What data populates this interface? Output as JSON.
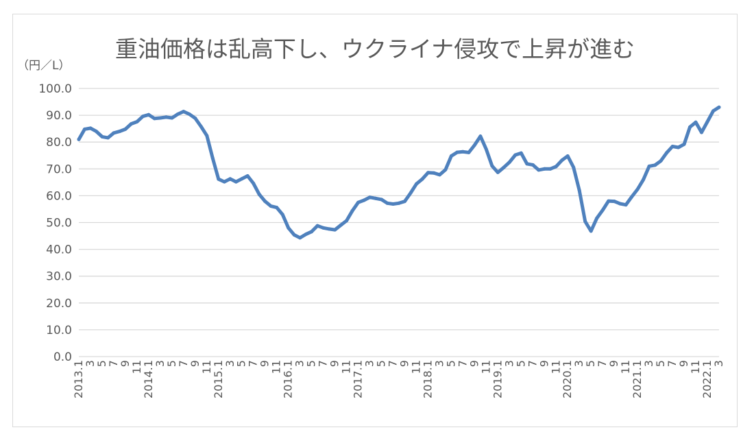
{
  "chart_data": {
    "type": "line",
    "title": "重油価格は乱高下し、ウクライナ侵攻で上昇が進む",
    "unit_label": "（円／L）",
    "xlabel": "",
    "ylabel": "",
    "ylim": [
      0,
      100
    ],
    "y_ticks": [
      "0.0",
      "10.0",
      "20.0",
      "30.0",
      "40.0",
      "50.0",
      "60.0",
      "70.0",
      "80.0",
      "90.0",
      "100.0"
    ],
    "grid": true,
    "legend": "none",
    "line_color": "#4f81bd",
    "x_ticks": [
      "2013.1",
      "3",
      "5",
      "7",
      "9",
      "11",
      "2014.1",
      "3",
      "5",
      "7",
      "9",
      "11",
      "2015.1",
      "3",
      "5",
      "7",
      "9",
      "11",
      "2016.1",
      "3",
      "5",
      "7",
      "9",
      "11",
      "2017.1",
      "3",
      "5",
      "7",
      "9",
      "11",
      "2018.1",
      "3",
      "5",
      "7",
      "9",
      "11",
      "2019.1",
      "3",
      "5",
      "7",
      "9",
      "11",
      "2020.1",
      "3",
      "5",
      "7",
      "9",
      "11",
      "2021.1",
      "3",
      "5",
      "7",
      "9",
      "11",
      "2022.1",
      "3"
    ],
    "series": [
      {
        "values": [
          81.0,
          84.8,
          85.2,
          84.0,
          82.0,
          81.6,
          83.4,
          84.0,
          84.8,
          86.8,
          87.6,
          89.6,
          90.2,
          88.8,
          89.0,
          89.3,
          89.0,
          90.4,
          91.4,
          90.4,
          88.9,
          85.8,
          82.4,
          74.0,
          66.2,
          65.2,
          66.3,
          65.2,
          66.3,
          67.4,
          64.6,
          60.5,
          57.9,
          56.1,
          55.6,
          53.0,
          48.0,
          45.4,
          44.3,
          45.6,
          46.6,
          48.8,
          48.0,
          47.6,
          47.3,
          49.0,
          50.7,
          54.4,
          57.5,
          58.3,
          59.4,
          59.0,
          58.6,
          57.2,
          56.9,
          57.2,
          57.9,
          61.0,
          64.4,
          66.2,
          68.6,
          68.5,
          67.8,
          69.7,
          74.8,
          76.2,
          76.4,
          76.1,
          78.9,
          82.2,
          77.3,
          71.1,
          68.7,
          70.5,
          72.5,
          75.2,
          75.9,
          71.9,
          71.5,
          69.6,
          70.0,
          70.0,
          70.9,
          73.2,
          74.8,
          70.6,
          62.0,
          50.4,
          46.8,
          51.6,
          54.6,
          58.0,
          57.9,
          57.0,
          56.6,
          59.6,
          62.4,
          66.0,
          71.0,
          71.4,
          73.0,
          76.0,
          78.4,
          78.0,
          79.2,
          85.6,
          87.4,
          83.6,
          87.6,
          91.6,
          93.0
        ]
      }
    ]
  }
}
